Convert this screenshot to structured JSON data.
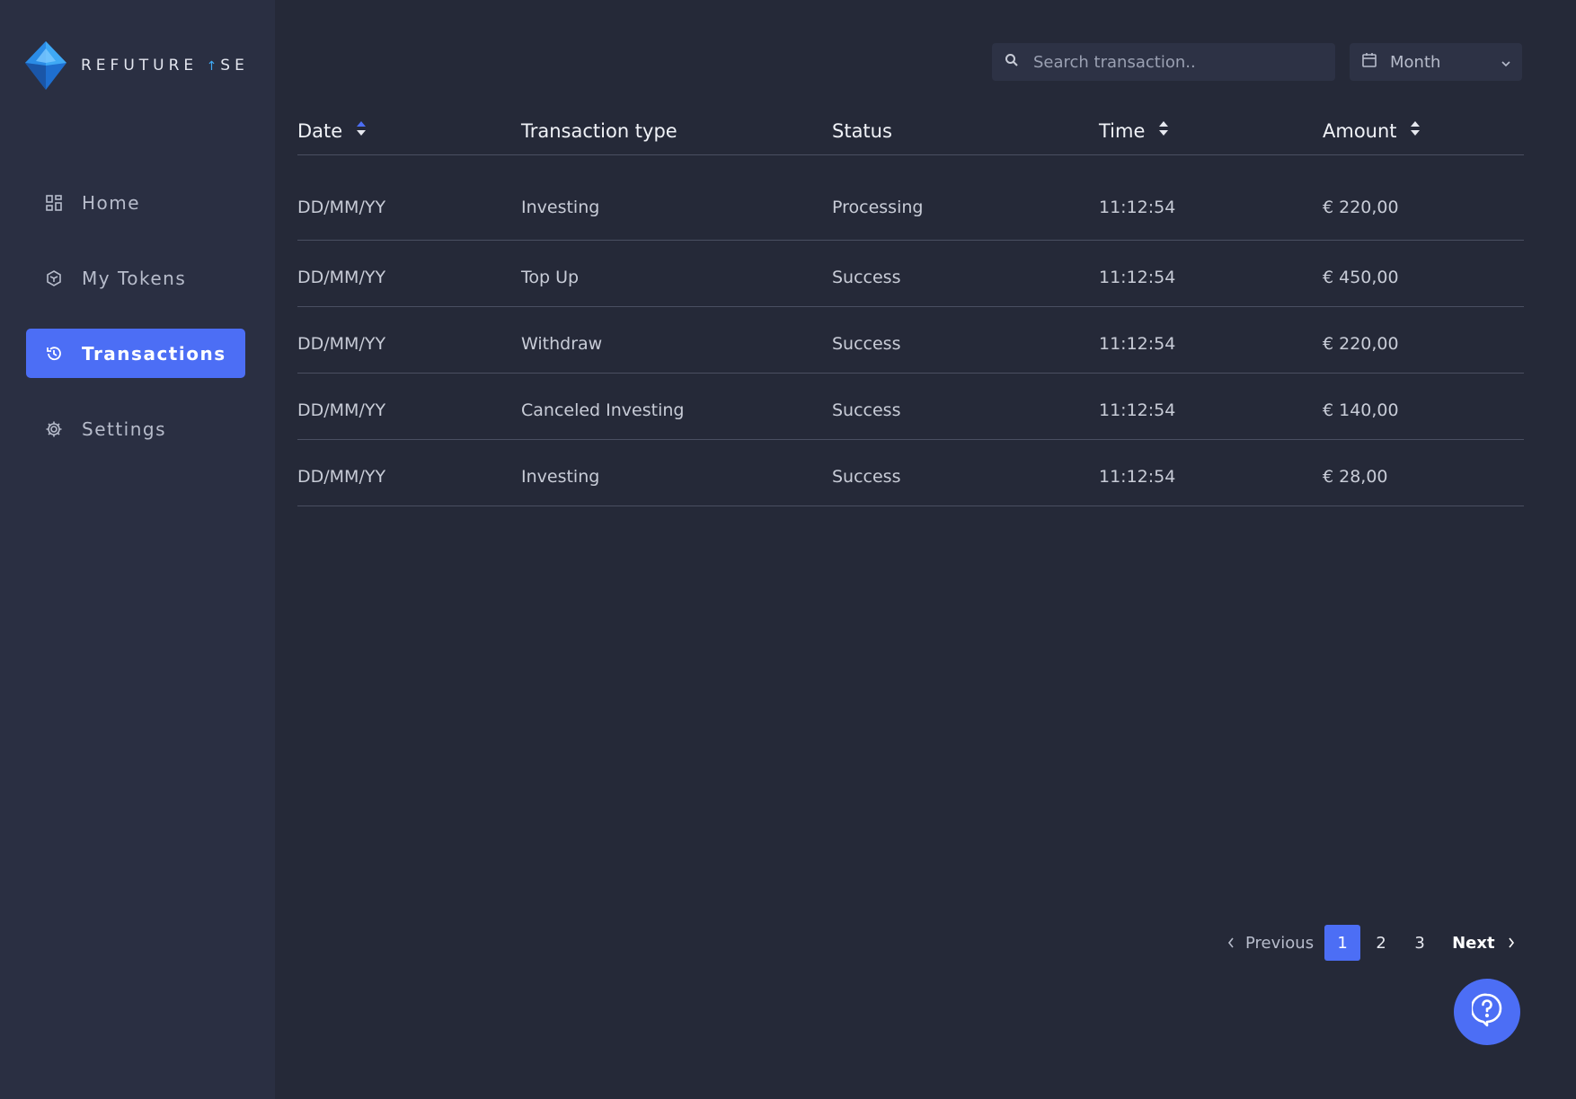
{
  "brand": {
    "name_left": "REFUTURE",
    "name_right": "SE"
  },
  "sidebar": {
    "items": [
      {
        "label": "Home",
        "icon": "dashboard-icon",
        "active": false
      },
      {
        "label": "My Tokens",
        "icon": "token-icon",
        "active": false
      },
      {
        "label": "Transactions",
        "icon": "history-icon",
        "active": true
      },
      {
        "label": "Settings",
        "icon": "gear-icon",
        "active": false
      }
    ]
  },
  "toolbar": {
    "search_placeholder": "Search transaction..",
    "period_label": "Month"
  },
  "table": {
    "headers": {
      "date": "Date",
      "type": "Transaction type",
      "status": "Status",
      "time": "Time",
      "amount": "Amount"
    },
    "rows": [
      {
        "date": "DD/MM/YY",
        "type": "Investing",
        "status": "Processing",
        "time": "11:12:54",
        "amount": "€ 220,00"
      },
      {
        "date": "DD/MM/YY",
        "type": "Top Up",
        "status": "Success",
        "time": "11:12:54",
        "amount": "€ 450,00"
      },
      {
        "date": "DD/MM/YY",
        "type": "Withdraw",
        "status": "Success",
        "time": "11:12:54",
        "amount": "€ 220,00"
      },
      {
        "date": "DD/MM/YY",
        "type": "Canceled Investing",
        "status": "Success",
        "time": "11:12:54",
        "amount": "€ 140,00"
      },
      {
        "date": "DD/MM/YY",
        "type": "Investing",
        "status": "Success",
        "time": "11:12:54",
        "amount": "€ 28,00"
      }
    ]
  },
  "pagination": {
    "previous": "Previous",
    "next": "Next",
    "pages": [
      "1",
      "2",
      "3"
    ],
    "current": "1"
  },
  "colors": {
    "accent": "#4c6ef5",
    "processing": "#f3c74f",
    "success": "#34d399",
    "amount_negative": "#f06b85",
    "amount_positive": "#34d399"
  }
}
